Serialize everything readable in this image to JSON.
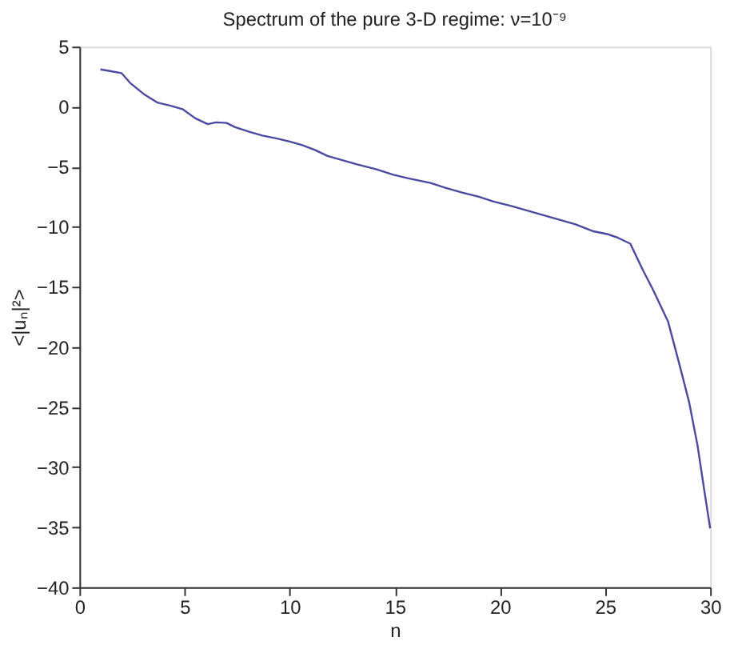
{
  "chart_data": {
    "type": "line",
    "title": "Spectrum of the pure 3-D regime: ν=10⁻⁹",
    "xlabel": "n",
    "ylabel": "<|uₙ|²>",
    "xlim": [
      0,
      30
    ],
    "xticks": [
      0,
      5,
      10,
      15,
      20,
      25,
      30
    ],
    "ylim": [
      -40,
      5
    ],
    "yticks": [
      -40,
      -35,
      -30,
      -25,
      -20,
      -15,
      -10,
      -5,
      0,
      5
    ],
    "grid": false,
    "marker": "none",
    "line_style": "solid",
    "series": [
      {
        "color": "#4a4aa0",
        "x": [
          1.0,
          1.5,
          2.0,
          2.4,
          3.1,
          3.7,
          4.3,
          4.9,
          5.5,
          6.1,
          6.5,
          7.0,
          7.4,
          8.1,
          8.7,
          9.4,
          10.0,
          10.6,
          11.2,
          11.8,
          12.6,
          13.2,
          14.1,
          14.9,
          15.6,
          16.7,
          17.4,
          18.2,
          19.0,
          19.7,
          20.5,
          21.3,
          22.0,
          22.8,
          23.6,
          24.4,
          25.1,
          25.6,
          26.2,
          26.8,
          27.3,
          28.0,
          28.5,
          29.0,
          29.4,
          29.7,
          30.0
        ],
        "values": [
          3.1,
          2.95,
          2.8,
          2.0,
          1.0,
          0.35,
          0.1,
          -0.2,
          -0.95,
          -1.45,
          -1.3,
          -1.35,
          -1.7,
          -2.1,
          -2.4,
          -2.65,
          -2.9,
          -3.2,
          -3.6,
          -4.1,
          -4.5,
          -4.8,
          -5.2,
          -5.65,
          -5.95,
          -6.35,
          -6.75,
          -7.15,
          -7.5,
          -7.9,
          -8.25,
          -8.65,
          -9.0,
          -9.4,
          -9.8,
          -10.35,
          -10.6,
          -10.9,
          -11.4,
          -13.6,
          -15.3,
          -17.9,
          -21.2,
          -24.6,
          -28.2,
          -31.7,
          -35.1
        ]
      }
    ]
  }
}
